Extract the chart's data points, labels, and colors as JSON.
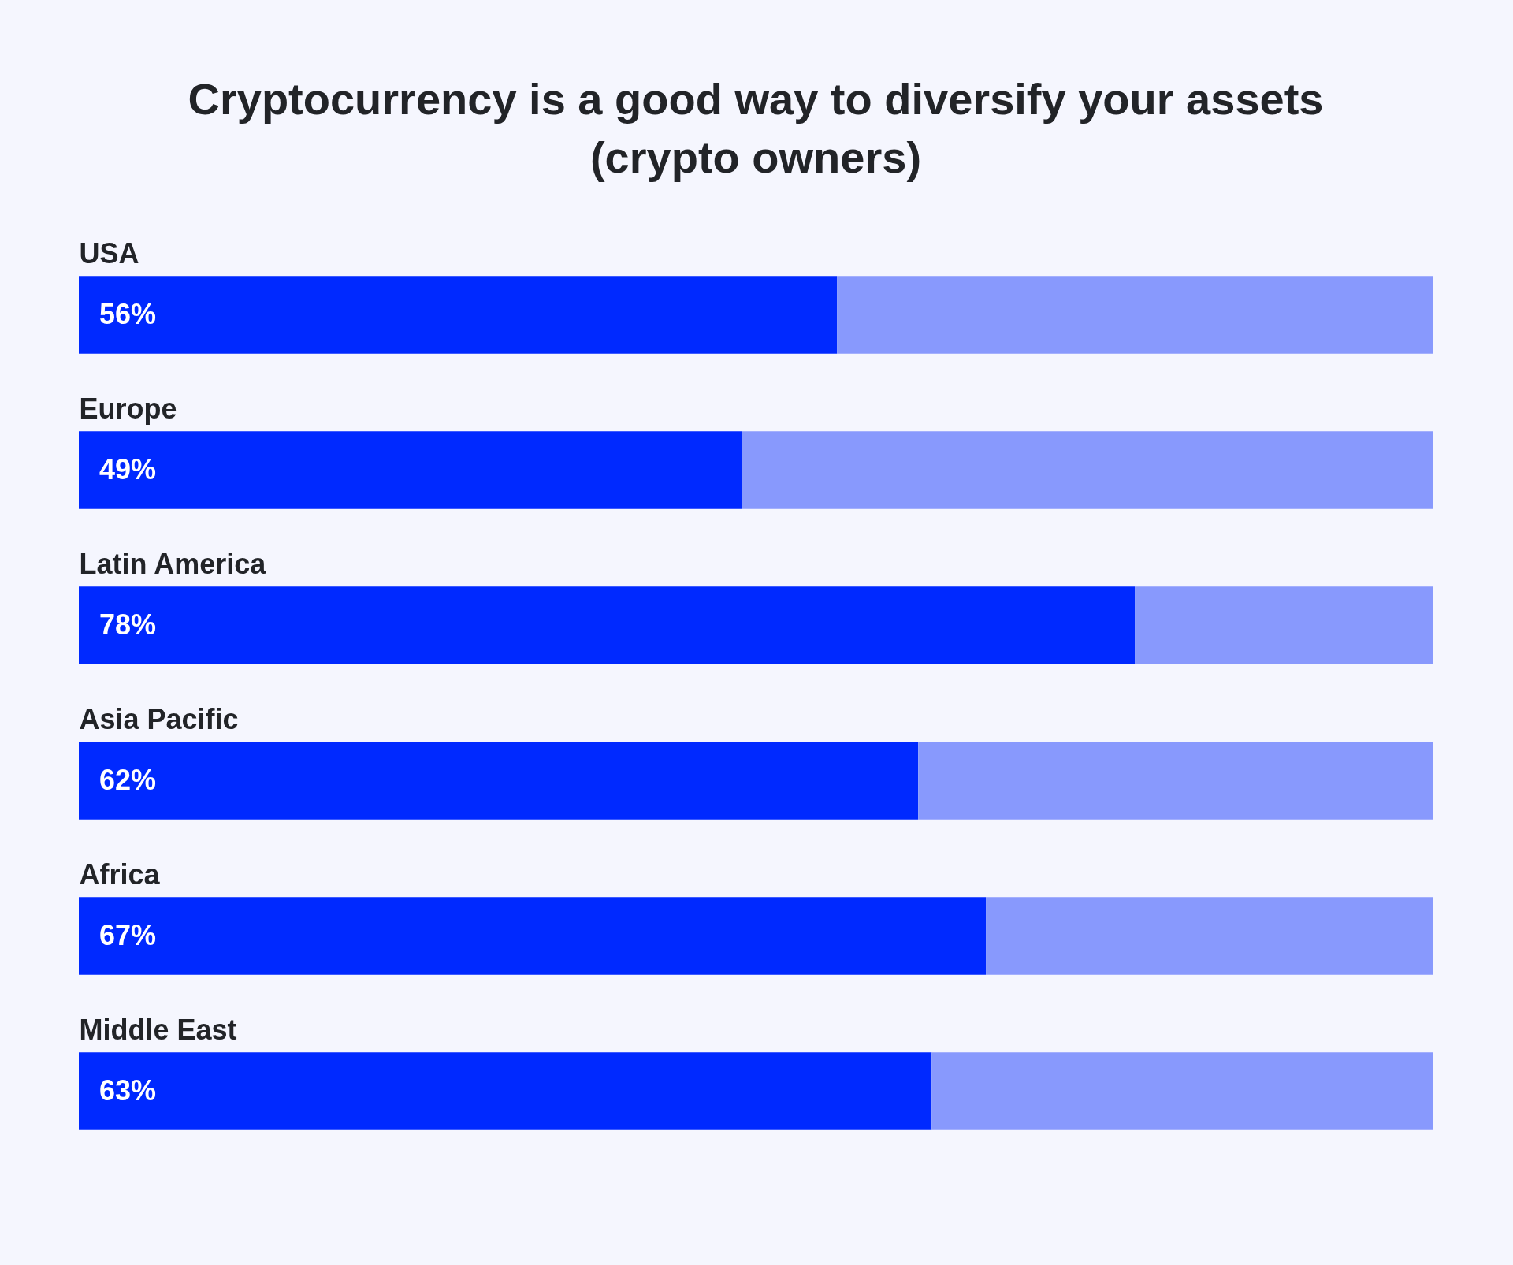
{
  "chart_data": {
    "type": "bar",
    "orientation": "horizontal",
    "stacked": true,
    "title": "Cryptocurrency is a good way to diversify your assets (crypto owners)",
    "categories": [
      "USA",
      "Europe",
      "Latin America",
      "Asia Pacific",
      "Africa",
      "Middle East"
    ],
    "series": [
      {
        "color": "#0029ff",
        "values": [
          56,
          49,
          78,
          62,
          67,
          63
        ],
        "value_labels": [
          "56%",
          "49%",
          "78%",
          "62%",
          "67%",
          "63%"
        ]
      },
      {
        "color": "#8899fd",
        "values": [
          44,
          51,
          22,
          38,
          33,
          37
        ]
      }
    ],
    "xlim": [
      0,
      100
    ],
    "tick_labels": "y",
    "legend": false
  }
}
